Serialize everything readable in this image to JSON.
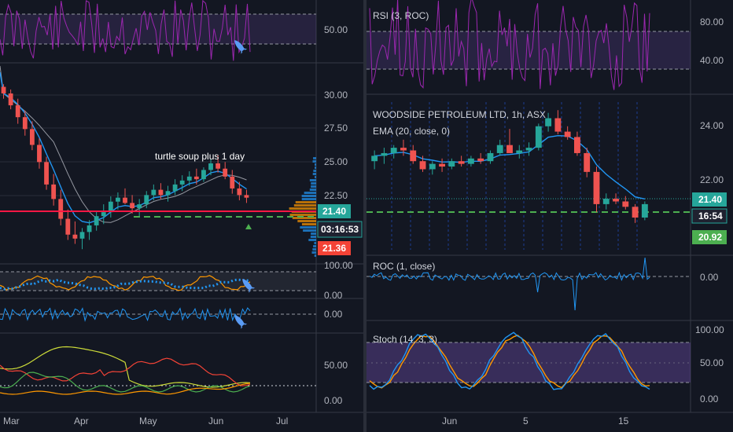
{
  "colors": {
    "background": "#131722",
    "grid": "#2a2e39",
    "separator": "#363a45",
    "up": "#26a69a",
    "down": "#ef5350",
    "ema": "#2196f3",
    "sma": "#9598a1",
    "rsi": "#9c27b0",
    "roc": "#2962ff",
    "stoch_k": "#2196f3",
    "stoch_d": "#ff9800",
    "band": "#7e57c2",
    "support": "#ff1744",
    "stop": "#4caf50",
    "last_price_tag": "#26a69a",
    "countdown_tag": "#26a69a",
    "bid_tag": "#f44336",
    "stop_tag": "#4caf50",
    "ema_blue": "#2196f3",
    "bb_orange": "#ff9800",
    "ind_yellow": "#cddc39",
    "ind_red": "#f44336",
    "ind_green": "#4caf50",
    "volume_profile": "#2196f3"
  },
  "icons": [
    "rocket-icon",
    "rocket-icon",
    "rocket-icon"
  ],
  "chart_data": [
    {
      "id": "left-rsi",
      "type": "line",
      "title": "",
      "ylim": [
        20,
        80
      ],
      "ticks": [
        "50.00"
      ],
      "band": [
        36,
        64
      ]
    },
    {
      "id": "left-price",
      "type": "candlestick",
      "title": "",
      "annotation": "turtle soup plus 1 day",
      "ylim": [
        16.5,
        31.5
      ],
      "ticks": [
        "30.00",
        "27.50",
        "25.00",
        "22.50"
      ],
      "x_ticks": [
        "Mar",
        "Apr",
        "May",
        "Jun",
        "Jul"
      ],
      "support_level": 21.4,
      "stop_level": 21.0,
      "last_price_label": "21.40",
      "countdown_label": "03:16:53",
      "bid_label": "21.36",
      "ohlc_series_note": "daily",
      "values": [
        [
          29.8,
          30.0,
          28.9,
          29.3
        ],
        [
          29.3,
          29.6,
          28.1,
          28.4
        ],
        [
          28.4,
          28.9,
          27.0,
          27.5
        ],
        [
          27.5,
          28.0,
          26.1,
          26.6
        ],
        [
          26.6,
          27.2,
          25.0,
          25.4
        ],
        [
          25.4,
          25.9,
          23.6,
          24.1
        ],
        [
          24.1,
          24.5,
          22.0,
          22.4
        ],
        [
          22.4,
          23.2,
          20.8,
          21.3
        ],
        [
          21.3,
          22.0,
          19.3,
          19.8
        ],
        [
          19.8,
          20.5,
          18.2,
          18.6
        ],
        [
          18.6,
          19.6,
          17.9,
          18.3
        ],
        [
          18.3,
          19.1,
          17.5,
          18.8
        ],
        [
          18.8,
          19.7,
          18.2,
          19.3
        ],
        [
          19.3,
          20.4,
          18.9,
          20.0
        ],
        [
          20.0,
          20.9,
          19.4,
          20.3
        ],
        [
          20.3,
          21.5,
          19.9,
          21.1
        ],
        [
          21.1,
          21.8,
          20.5,
          21.4
        ],
        [
          21.4,
          22.1,
          20.9,
          21.0
        ],
        [
          21.0,
          21.6,
          20.2,
          20.6
        ],
        [
          20.6,
          21.3,
          20.0,
          20.9
        ],
        [
          20.9,
          21.9,
          20.6,
          21.6
        ],
        [
          21.6,
          22.4,
          21.2,
          22.0
        ],
        [
          22.0,
          22.5,
          21.3,
          21.6
        ],
        [
          21.6,
          22.3,
          21.1,
          21.9
        ],
        [
          21.9,
          22.8,
          21.6,
          22.4
        ],
        [
          22.4,
          23.1,
          21.9,
          22.7
        ],
        [
          22.7,
          23.4,
          22.3,
          23.0
        ],
        [
          23.0,
          23.6,
          22.4,
          22.8
        ],
        [
          22.8,
          23.7,
          22.6,
          23.5
        ],
        [
          23.5,
          24.3,
          23.1,
          24.0
        ],
        [
          24.0,
          24.6,
          23.3,
          23.6
        ],
        [
          23.6,
          24.1,
          22.8,
          23.0
        ],
        [
          23.0,
          23.5,
          21.7,
          22.1
        ],
        [
          22.1,
          22.6,
          21.2,
          21.6
        ],
        [
          21.6,
          22.0,
          21.0,
          21.4
        ]
      ]
    },
    {
      "id": "left-osc1",
      "type": "line",
      "title": "",
      "ylim": [
        0,
        100
      ],
      "ticks": [
        "100.00",
        "0.00"
      ]
    },
    {
      "id": "left-roc",
      "type": "line",
      "title": "",
      "ylim": [
        -1,
        1
      ],
      "ticks": [
        "0.00"
      ]
    },
    {
      "id": "left-osc2",
      "type": "line",
      "title": "",
      "ylim": [
        0,
        100
      ],
      "ticks": [
        "50.00",
        "0.00"
      ]
    },
    {
      "id": "right-rsi",
      "type": "line",
      "title": "RSI (3, ROC)",
      "ylim": [
        20,
        95
      ],
      "ticks": [
        "80.00",
        "40.00"
      ],
      "band": [
        30,
        70
      ]
    },
    {
      "id": "right-price",
      "type": "candlestick",
      "title": "WOODSIDE PETROLEUM LTD, 1h, ASX",
      "ema_label": "EMA (20, close, 0)",
      "ylim": [
        19.7,
        25.2
      ],
      "ticks": [
        "24.00",
        "22.00"
      ],
      "last_price_label": "21.40",
      "countdown_label": "16:54",
      "stop_label": "20.92",
      "stop_level": 20.92,
      "support_level": 21.4,
      "values": [
        [
          23.0,
          23.4,
          22.7,
          23.2
        ],
        [
          23.2,
          23.5,
          22.9,
          23.3
        ],
        [
          23.3,
          23.6,
          23.1,
          23.5
        ],
        [
          23.5,
          23.8,
          23.2,
          23.4
        ],
        [
          23.4,
          23.6,
          22.9,
          23.0
        ],
        [
          23.0,
          23.2,
          22.6,
          22.7
        ],
        [
          22.7,
          23.0,
          22.5,
          22.9
        ],
        [
          22.9,
          23.1,
          22.6,
          22.8
        ],
        [
          22.8,
          23.1,
          22.7,
          23.0
        ],
        [
          23.0,
          23.2,
          22.8,
          22.9
        ],
        [
          22.9,
          23.2,
          22.8,
          23.1
        ],
        [
          23.1,
          23.3,
          22.9,
          23.0
        ],
        [
          23.0,
          23.4,
          22.9,
          23.3
        ],
        [
          23.3,
          23.8,
          23.2,
          23.6
        ],
        [
          23.6,
          24.2,
          23.4,
          23.3
        ],
        [
          23.3,
          23.6,
          23.1,
          23.4
        ],
        [
          23.4,
          23.7,
          23.2,
          23.5
        ],
        [
          23.5,
          24.4,
          23.4,
          24.3
        ],
        [
          24.3,
          24.8,
          24.1,
          24.6
        ],
        [
          24.6,
          24.9,
          24.0,
          24.1
        ],
        [
          24.1,
          24.3,
          23.8,
          23.9
        ],
        [
          23.9,
          24.1,
          23.2,
          23.3
        ],
        [
          23.3,
          23.5,
          22.4,
          22.6
        ],
        [
          22.6,
          22.8,
          21.1,
          21.4
        ],
        [
          21.4,
          21.8,
          21.2,
          21.6
        ],
        [
          21.6,
          21.8,
          21.4,
          21.5
        ],
        [
          21.5,
          21.7,
          21.2,
          21.3
        ],
        [
          21.3,
          21.4,
          20.7,
          20.9
        ],
        [
          20.9,
          21.5,
          20.8,
          21.4
        ]
      ]
    },
    {
      "id": "right-roc",
      "type": "line",
      "title": "ROC (1, close)",
      "ylim": [
        -1,
        1
      ],
      "ticks": [
        "0.00"
      ]
    },
    {
      "id": "right-stoch",
      "type": "line",
      "title": "Stoch (14, 3, 3)",
      "ylim": [
        0,
        100
      ],
      "ticks": [
        "100.00",
        "50.00",
        "0.00"
      ],
      "band": [
        20,
        80
      ],
      "x_ticks": [
        "Jun",
        "5",
        "15"
      ]
    }
  ]
}
